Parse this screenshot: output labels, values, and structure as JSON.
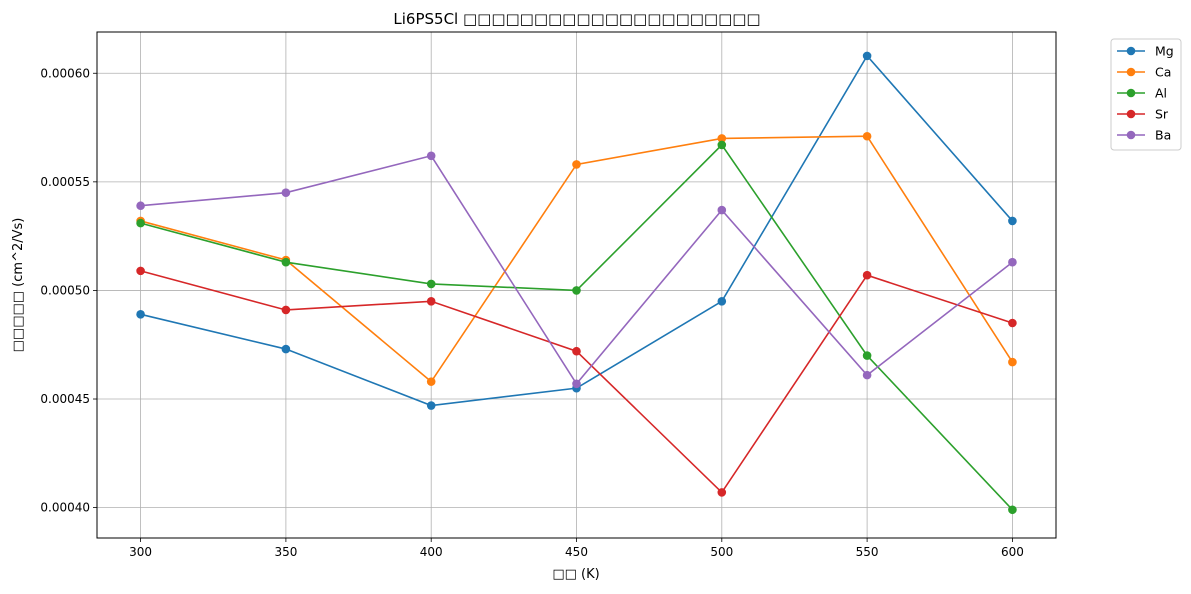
{
  "chart_data": {
    "type": "line",
    "title": "Li6PS5Cl □□□□□□□□□□□□□□□□□□□□□",
    "xlabel": "□□ (K)",
    "ylabel": "□□□□□ (cm^2/Vs)",
    "x": [
      300,
      350,
      400,
      450,
      500,
      550,
      600
    ],
    "xlim": [
      285,
      615
    ],
    "ylim": [
      0.000386,
      0.000619
    ],
    "xticks": [
      "300",
      "350",
      "400",
      "450",
      "500",
      "550",
      "600"
    ],
    "yticks": [
      0.0004,
      0.00045,
      0.0005,
      0.00055,
      0.0006
    ],
    "ytick_labels": [
      "0.00040",
      "0.00045",
      "0.00050",
      "0.00055",
      "0.00060"
    ],
    "grid": true,
    "legend_position": "outside-top-right",
    "markers": true,
    "series": [
      {
        "name": "Mg",
        "color": "#1f77b4",
        "values": [
          0.000489,
          0.000473,
          0.000447,
          0.000455,
          0.000495,
          0.000608,
          0.000532
        ]
      },
      {
        "name": "Ca",
        "color": "#ff7f0e",
        "values": [
          0.000532,
          0.000514,
          0.000458,
          0.000558,
          0.00057,
          0.000571,
          0.000467
        ]
      },
      {
        "name": "Al",
        "color": "#2ca02c",
        "values": [
          0.000531,
          0.000513,
          0.000503,
          0.0005,
          0.000567,
          0.00047,
          0.000399
        ]
      },
      {
        "name": "Sr",
        "color": "#d62728",
        "values": [
          0.000509,
          0.000491,
          0.000495,
          0.000472,
          0.000407,
          0.000507,
          0.000485
        ]
      },
      {
        "name": "Ba",
        "color": "#9467bd",
        "values": [
          0.000539,
          0.000545,
          0.000562,
          0.000457,
          0.000537,
          0.000461,
          0.000513
        ]
      }
    ]
  }
}
